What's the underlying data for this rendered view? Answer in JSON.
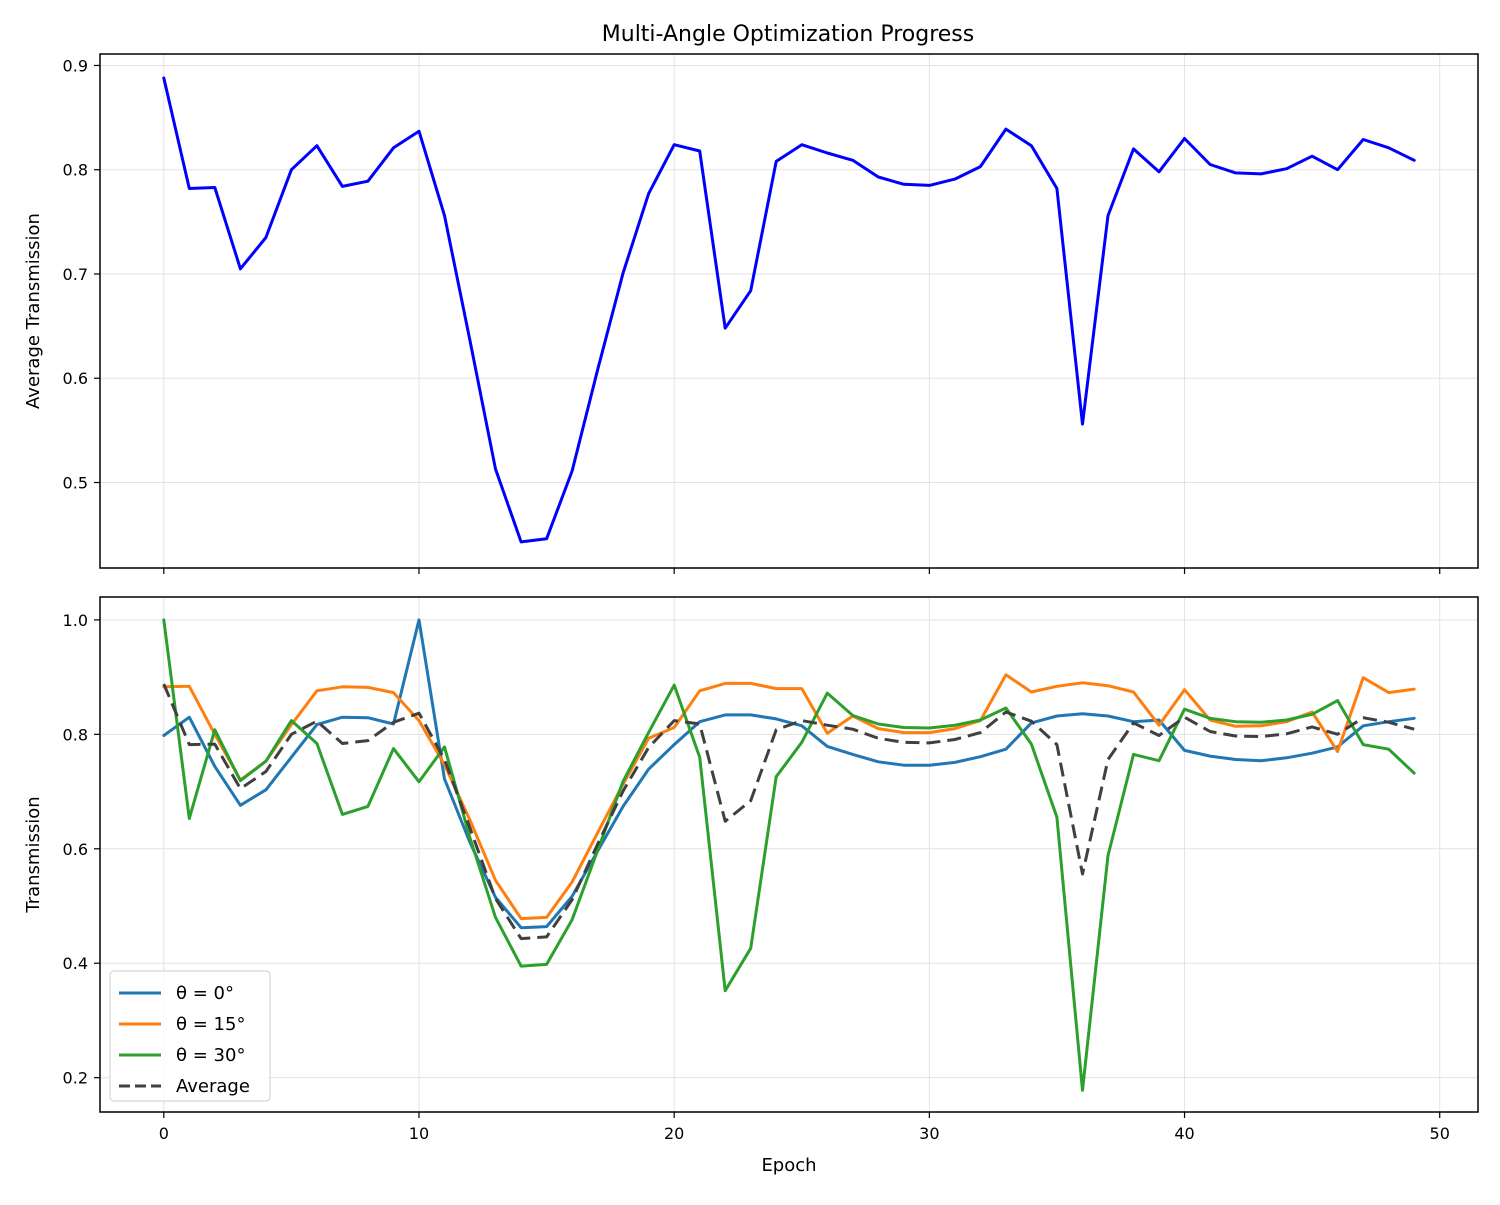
{
  "chart_data": [
    {
      "type": "line",
      "title": "Multi-Angle Optimization Progress",
      "xlabel": "",
      "ylabel": "Average Transmission",
      "xlim": [
        -2.5,
        51.5
      ],
      "ylim": [
        0.418,
        0.911
      ],
      "xticks": [
        0,
        10,
        20,
        30,
        40,
        50
      ],
      "xtick_labels_visible": false,
      "yticks": [
        0.5,
        0.6,
        0.7,
        0.8,
        0.9
      ],
      "ytick_labels": [
        "0.5",
        "0.6",
        "0.7",
        "0.8",
        "0.9"
      ],
      "grid": true,
      "x": [
        0,
        1,
        2,
        3,
        4,
        5,
        6,
        7,
        8,
        9,
        10,
        11,
        12,
        13,
        14,
        15,
        16,
        17,
        18,
        19,
        20,
        21,
        22,
        23,
        24,
        25,
        26,
        27,
        28,
        29,
        30,
        31,
        32,
        33,
        34,
        35,
        36,
        37,
        38,
        39,
        40,
        41,
        42,
        43,
        44,
        45,
        46,
        47,
        48,
        49
      ],
      "series": [
        {
          "color": "#0000ff",
          "linestyle": "solid",
          "values": [
            0.888,
            0.782,
            0.783,
            0.705,
            0.735,
            0.8,
            0.823,
            0.784,
            0.789,
            0.821,
            0.837,
            0.756,
            0.636,
            0.513,
            0.443,
            0.446,
            0.511,
            0.608,
            0.701,
            0.777,
            0.824,
            0.818,
            0.648,
            0.684,
            0.808,
            0.824,
            0.816,
            0.809,
            0.793,
            0.786,
            0.785,
            0.791,
            0.803,
            0.839,
            0.823,
            0.782,
            0.556,
            0.756,
            0.82,
            0.798,
            0.83,
            0.805,
            0.797,
            0.796,
            0.801,
            0.813,
            0.8,
            0.829,
            0.821,
            0.809
          ]
        }
      ]
    },
    {
      "type": "line",
      "title": "",
      "xlabel": "Epoch",
      "ylabel": "Transmission",
      "xlim": [
        -2.5,
        51.5
      ],
      "ylim": [
        0.14,
        1.04
      ],
      "xticks": [
        0,
        10,
        20,
        30,
        40,
        50
      ],
      "xtick_labels": [
        "0",
        "10",
        "20",
        "30",
        "40",
        "50"
      ],
      "yticks": [
        0.2,
        0.4,
        0.6,
        0.8,
        1.0
      ],
      "ytick_labels": [
        "0.2",
        "0.4",
        "0.6",
        "0.8",
        "1.0"
      ],
      "grid": true,
      "legend_position": "lower-left",
      "x": [
        0,
        1,
        2,
        3,
        4,
        5,
        6,
        7,
        8,
        9,
        10,
        11,
        12,
        13,
        14,
        15,
        16,
        17,
        18,
        19,
        20,
        21,
        22,
        23,
        24,
        25,
        26,
        27,
        28,
        29,
        30,
        31,
        32,
        33,
        34,
        35,
        36,
        37,
        38,
        39,
        40,
        41,
        42,
        43,
        44,
        45,
        46,
        47,
        48,
        49
      ],
      "series": [
        {
          "name": "θ = 0°",
          "color": "#1f77b4",
          "linestyle": "solid",
          "values": [
            0.798,
            0.83,
            0.744,
            0.676,
            0.703,
            0.76,
            0.817,
            0.83,
            0.829,
            0.818,
            1.0,
            0.722,
            0.611,
            0.515,
            0.462,
            0.464,
            0.517,
            0.596,
            0.674,
            0.739,
            0.782,
            0.822,
            0.834,
            0.834,
            0.827,
            0.815,
            0.779,
            0.765,
            0.752,
            0.746,
            0.746,
            0.751,
            0.761,
            0.774,
            0.82,
            0.832,
            0.836,
            0.832,
            0.822,
            0.825,
            0.772,
            0.762,
            0.756,
            0.754,
            0.759,
            0.767,
            0.778,
            0.815,
            0.822,
            0.828
          ]
        },
        {
          "name": "θ = 15°",
          "color": "#ff7f0e",
          "linestyle": "solid",
          "values": [
            0.883,
            0.884,
            0.8,
            0.72,
            0.753,
            0.817,
            0.876,
            0.883,
            0.882,
            0.873,
            0.824,
            0.747,
            0.65,
            0.545,
            0.478,
            0.48,
            0.542,
            0.628,
            0.713,
            0.793,
            0.812,
            0.876,
            0.889,
            0.889,
            0.88,
            0.88,
            0.802,
            0.832,
            0.81,
            0.803,
            0.803,
            0.81,
            0.824,
            0.904,
            0.874,
            0.884,
            0.89,
            0.885,
            0.874,
            0.816,
            0.878,
            0.825,
            0.814,
            0.815,
            0.822,
            0.839,
            0.77,
            0.899,
            0.873,
            0.879
          ]
        },
        {
          "name": "θ = 30°",
          "color": "#2ca02c",
          "linestyle": "solid",
          "values": [
            1.0,
            0.653,
            0.808,
            0.719,
            0.753,
            0.824,
            0.784,
            0.66,
            0.674,
            0.775,
            0.717,
            0.778,
            0.619,
            0.48,
            0.395,
            0.398,
            0.476,
            0.597,
            0.718,
            0.803,
            0.886,
            0.76,
            0.352,
            0.426,
            0.726,
            0.786,
            0.872,
            0.833,
            0.818,
            0.812,
            0.811,
            0.816,
            0.825,
            0.846,
            0.783,
            0.655,
            0.178,
            0.588,
            0.765,
            0.754,
            0.844,
            0.828,
            0.822,
            0.821,
            0.825,
            0.835,
            0.859,
            0.782,
            0.774,
            0.732
          ]
        },
        {
          "name": "Average",
          "color": "#404040",
          "linestyle": "dashed",
          "values": [
            0.888,
            0.782,
            0.783,
            0.705,
            0.735,
            0.8,
            0.823,
            0.784,
            0.789,
            0.821,
            0.837,
            0.756,
            0.636,
            0.513,
            0.443,
            0.446,
            0.511,
            0.608,
            0.701,
            0.777,
            0.824,
            0.818,
            0.648,
            0.684,
            0.808,
            0.824,
            0.816,
            0.809,
            0.793,
            0.786,
            0.785,
            0.791,
            0.803,
            0.839,
            0.823,
            0.782,
            0.556,
            0.756,
            0.82,
            0.798,
            0.83,
            0.805,
            0.797,
            0.796,
            0.801,
            0.813,
            0.8,
            0.829,
            0.821,
            0.809
          ]
        }
      ]
    }
  ]
}
